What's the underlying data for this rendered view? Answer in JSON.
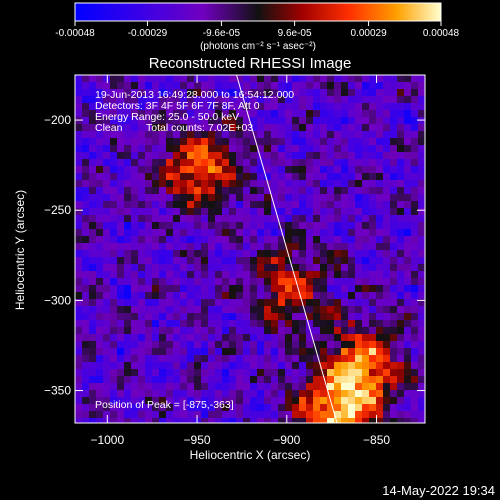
{
  "colorbar": {
    "ticks": [
      "-0.00048",
      "-0.00029",
      "-9.6e-05",
      "9.6e-05",
      "0.00029",
      "0.00048"
    ],
    "tick_values": [
      -0.00048,
      -0.00029,
      -9.6e-05,
      9.6e-05,
      0.00029,
      0.00048
    ],
    "range": [
      -0.00048,
      0.00048
    ],
    "units": "(photons cm⁻² s⁻¹ asec⁻²)"
  },
  "chart_data": {
    "type": "heatmap",
    "title": "Reconstructed RHESSI Image",
    "xlabel": "Heliocentric X (arcsec)",
    "ylabel": "Heliocentric Y (arcsec)",
    "xlim": [
      -1018,
      -823
    ],
    "ylim": [
      -368,
      -175
    ],
    "x_ticks": [
      -1000,
      -950,
      -900,
      -850
    ],
    "y_ticks": [
      -200,
      -250,
      -300,
      -350
    ],
    "x_tick_labels": [
      "−1000",
      "−950",
      "−900",
      "−850"
    ],
    "y_tick_labels": [
      "−200",
      "−250",
      "−300",
      "−350"
    ],
    "peak": {
      "x": -875,
      "y": -363
    },
    "hot_regions": [
      {
        "x": -950,
        "y": -225,
        "level": 0.8
      },
      {
        "x": -860,
        "y": -335,
        "level": 0.9
      },
      {
        "x": -900,
        "y": -290,
        "level": 0.6
      },
      {
        "x": -875,
        "y": -363,
        "level": 1.0
      }
    ],
    "limb_line": {
      "x": [
        -928,
        -872
      ],
      "y": [
        -175,
        -368
      ]
    }
  },
  "info": {
    "time": "19-Jun-2013 16:49:28.000 to 16:54:12.000",
    "detectors": "Detectors: 3F 4F 5F 6F 7F 8F, Att 0",
    "energy": "Energy Range: 25.0 - 50.0 keV",
    "clean": "Clean",
    "total_counts": "Total counts: 7.02E+03",
    "peak_label": "Position of Peak = [-875,-363]"
  },
  "timestamp": "14-May-2022 19:34"
}
